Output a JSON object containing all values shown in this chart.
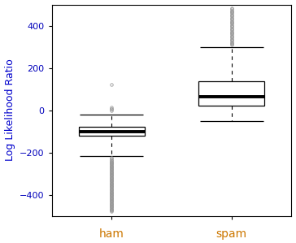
{
  "categories": [
    "ham",
    "spam"
  ],
  "ham": {
    "q1": -120,
    "median": -100,
    "q3": -80,
    "whisker_low": -215,
    "whisker_high": -20,
    "outliers_high": [
      0,
      5,
      8,
      12,
      120
    ],
    "outliers_low": [
      -225,
      -230,
      -235,
      -238,
      -242,
      -245,
      -248,
      -250,
      -253,
      -256,
      -259,
      -262,
      -265,
      -268,
      -271,
      -274,
      -277,
      -280,
      -283,
      -286,
      -289,
      -292,
      -295,
      -298,
      -301,
      -304,
      -307,
      -310,
      -313,
      -316,
      -319,
      -322,
      -325,
      -328,
      -331,
      -334,
      -337,
      -340,
      -343,
      -346,
      -349,
      -352,
      -355,
      -358,
      -361,
      -364,
      -367,
      -370,
      -373,
      -376,
      -379,
      -382,
      -385,
      -388,
      -391,
      -394,
      -397,
      -400,
      -403,
      -406,
      -409,
      -412,
      -415,
      -418,
      -421,
      -424,
      -427,
      -430,
      -433,
      -436,
      -439,
      -442,
      -445,
      -448,
      -451,
      -454,
      -457,
      -460,
      -463,
      -466,
      -469,
      -472,
      -475,
      -480
    ]
  },
  "spam": {
    "q1": 20,
    "median": 65,
    "q3": 135,
    "whisker_low": -50,
    "whisker_high": 300,
    "outliers_high": [
      308,
      313,
      318,
      323,
      328,
      333,
      338,
      343,
      348,
      353,
      358,
      363,
      368,
      373,
      378,
      383,
      388,
      393,
      398,
      403,
      408,
      413,
      418,
      423,
      428,
      433,
      438,
      443,
      448,
      453,
      458,
      463,
      468,
      473,
      478,
      483
    ],
    "outliers_low": []
  },
  "ylabel": "Log Likelihood Ratio",
  "xlabel_color": "#cc7700",
  "ylabel_color": "#0000cc",
  "ylim": [
    -500,
    500
  ],
  "yticks": [
    -400,
    -200,
    0,
    200,
    400
  ],
  "box_width": 0.55,
  "background_color": "#ffffff",
  "box_color": "#ffffff",
  "median_linewidth": 2.8,
  "outlier_marker": "o",
  "outlier_size": 2.5,
  "outlier_color": "#999999",
  "border_color": "#000000",
  "tick_labelsize": 8,
  "ylabel_fontsize": 9,
  "xlabel_fontsize": 10
}
